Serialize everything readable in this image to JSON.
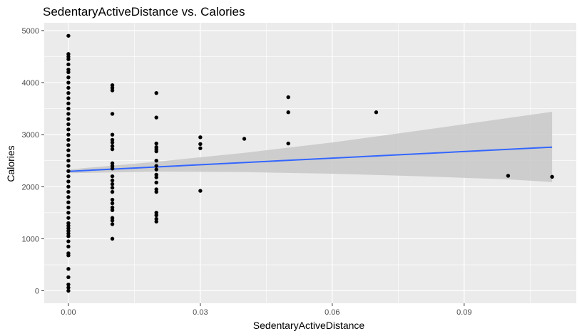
{
  "chart_data": {
    "type": "scatter",
    "title": "SedentaryActiveDistance vs. Calories",
    "xlabel": "SedentaryActiveDistance",
    "ylabel": "Calories",
    "xlim": [
      -0.0055,
      0.1155
    ],
    "ylim": [
      -240,
      5150
    ],
    "x_ticks": [
      0.0,
      0.03,
      0.06,
      0.09
    ],
    "x_tick_labels": [
      "0.00",
      "0.03",
      "0.06",
      "0.09"
    ],
    "y_ticks": [
      0,
      1000,
      2000,
      3000,
      4000,
      5000
    ],
    "y_tick_labels": [
      "0",
      "1000",
      "2000",
      "3000",
      "4000",
      "5000"
    ],
    "grid": true,
    "points": [
      {
        "x": 0.0,
        "y": 4900
      },
      {
        "x": 0.0,
        "y": 4550
      },
      {
        "x": 0.0,
        "y": 4500
      },
      {
        "x": 0.0,
        "y": 4450
      },
      {
        "x": 0.0,
        "y": 4350
      },
      {
        "x": 0.0,
        "y": 4250
      },
      {
        "x": 0.0,
        "y": 4200
      },
      {
        "x": 0.0,
        "y": 4100
      },
      {
        "x": 0.0,
        "y": 4000
      },
      {
        "x": 0.0,
        "y": 3900
      },
      {
        "x": 0.0,
        "y": 3800
      },
      {
        "x": 0.0,
        "y": 3700
      },
      {
        "x": 0.0,
        "y": 3600
      },
      {
        "x": 0.0,
        "y": 3500
      },
      {
        "x": 0.0,
        "y": 3400
      },
      {
        "x": 0.0,
        "y": 3300
      },
      {
        "x": 0.0,
        "y": 3200
      },
      {
        "x": 0.0,
        "y": 3100
      },
      {
        "x": 0.0,
        "y": 3000
      },
      {
        "x": 0.0,
        "y": 2900
      },
      {
        "x": 0.0,
        "y": 2800
      },
      {
        "x": 0.0,
        "y": 2700
      },
      {
        "x": 0.0,
        "y": 2600
      },
      {
        "x": 0.0,
        "y": 2500
      },
      {
        "x": 0.0,
        "y": 2400
      },
      {
        "x": 0.0,
        "y": 2300
      },
      {
        "x": 0.0,
        "y": 2200
      },
      {
        "x": 0.0,
        "y": 2100
      },
      {
        "x": 0.0,
        "y": 2000
      },
      {
        "x": 0.0,
        "y": 1900
      },
      {
        "x": 0.0,
        "y": 1800
      },
      {
        "x": 0.0,
        "y": 1700
      },
      {
        "x": 0.0,
        "y": 1600
      },
      {
        "x": 0.0,
        "y": 1500
      },
      {
        "x": 0.0,
        "y": 1400
      },
      {
        "x": 0.0,
        "y": 1300
      },
      {
        "x": 0.0,
        "y": 1250
      },
      {
        "x": 0.0,
        "y": 1200
      },
      {
        "x": 0.0,
        "y": 1150
      },
      {
        "x": 0.0,
        "y": 1100
      },
      {
        "x": 0.0,
        "y": 1050
      },
      {
        "x": 0.0,
        "y": 950
      },
      {
        "x": 0.0,
        "y": 850
      },
      {
        "x": 0.0,
        "y": 720
      },
      {
        "x": 0.0,
        "y": 680
      },
      {
        "x": 0.0,
        "y": 420
      },
      {
        "x": 0.0,
        "y": 260
      },
      {
        "x": 0.0,
        "y": 120
      },
      {
        "x": 0.0,
        "y": 60
      },
      {
        "x": 0.0,
        "y": 0
      },
      {
        "x": 0.01,
        "y": 3950
      },
      {
        "x": 0.01,
        "y": 3900
      },
      {
        "x": 0.01,
        "y": 3850
      },
      {
        "x": 0.01,
        "y": 3400
      },
      {
        "x": 0.01,
        "y": 3000
      },
      {
        "x": 0.01,
        "y": 2900
      },
      {
        "x": 0.01,
        "y": 2850
      },
      {
        "x": 0.01,
        "y": 2780
      },
      {
        "x": 0.01,
        "y": 2720
      },
      {
        "x": 0.01,
        "y": 2450
      },
      {
        "x": 0.01,
        "y": 2400
      },
      {
        "x": 0.01,
        "y": 2350
      },
      {
        "x": 0.01,
        "y": 2200
      },
      {
        "x": 0.01,
        "y": 2120
      },
      {
        "x": 0.01,
        "y": 2050
      },
      {
        "x": 0.01,
        "y": 1980
      },
      {
        "x": 0.01,
        "y": 1900
      },
      {
        "x": 0.01,
        "y": 1750
      },
      {
        "x": 0.01,
        "y": 1680
      },
      {
        "x": 0.01,
        "y": 1600
      },
      {
        "x": 0.01,
        "y": 1550
      },
      {
        "x": 0.01,
        "y": 1400
      },
      {
        "x": 0.01,
        "y": 1350
      },
      {
        "x": 0.01,
        "y": 1280
      },
      {
        "x": 0.01,
        "y": 1000
      },
      {
        "x": 0.02,
        "y": 3800
      },
      {
        "x": 0.02,
        "y": 3330
      },
      {
        "x": 0.02,
        "y": 2830
      },
      {
        "x": 0.02,
        "y": 2760
      },
      {
        "x": 0.02,
        "y": 2720
      },
      {
        "x": 0.02,
        "y": 2680
      },
      {
        "x": 0.02,
        "y": 2500
      },
      {
        "x": 0.02,
        "y": 2400
      },
      {
        "x": 0.02,
        "y": 2330
      },
      {
        "x": 0.02,
        "y": 2230
      },
      {
        "x": 0.02,
        "y": 2180
      },
      {
        "x": 0.02,
        "y": 2080
      },
      {
        "x": 0.02,
        "y": 1950
      },
      {
        "x": 0.02,
        "y": 1900
      },
      {
        "x": 0.02,
        "y": 1500
      },
      {
        "x": 0.02,
        "y": 1450
      },
      {
        "x": 0.02,
        "y": 1380
      },
      {
        "x": 0.02,
        "y": 1330
      },
      {
        "x": 0.03,
        "y": 2950
      },
      {
        "x": 0.03,
        "y": 2820
      },
      {
        "x": 0.03,
        "y": 2740
      },
      {
        "x": 0.03,
        "y": 1920
      },
      {
        "x": 0.04,
        "y": 2920
      },
      {
        "x": 0.05,
        "y": 3720
      },
      {
        "x": 0.05,
        "y": 3430
      },
      {
        "x": 0.05,
        "y": 2830
      },
      {
        "x": 0.07,
        "y": 3430
      },
      {
        "x": 0.1,
        "y": 2210
      },
      {
        "x": 0.11,
        "y": 2190
      }
    ],
    "trend_line": {
      "method": "lm",
      "x": [
        0.0,
        0.11
      ],
      "y": [
        2295,
        2760
      ]
    },
    "confidence_band": {
      "x": [
        0.0,
        0.02,
        0.04,
        0.06,
        0.08,
        0.1,
        0.11
      ],
      "upper": [
        2330,
        2480,
        2650,
        2850,
        3080,
        3320,
        3440
      ],
      "lower": [
        2260,
        2290,
        2280,
        2250,
        2200,
        2140,
        2090
      ]
    },
    "colors": {
      "panel": "#ebebeb",
      "grid_major": "#ffffff",
      "point": "#000000",
      "line": "#3366ff",
      "band": "#c8c8c8"
    }
  }
}
